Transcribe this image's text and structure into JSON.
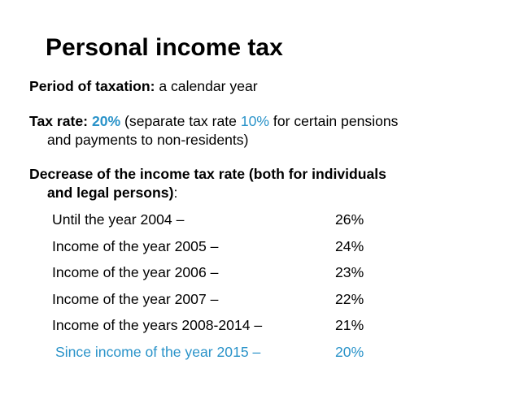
{
  "title": "Personal income tax",
  "period": {
    "label": "Period of taxation:",
    "value": " a calendar year"
  },
  "tax_rate": {
    "label": "Tax rate:",
    "rate": "20%",
    "text_before_separate": " (separate tax rate ",
    "separate_rate": "10%",
    "text_after_separate_line1": " for certain pensions",
    "text_line2": "and payments to non-residents)"
  },
  "decrease": {
    "line1": "Decrease of the income tax rate (both for individuals",
    "line2_bold": "and legal persons)",
    "line2_tail": ":"
  },
  "rates": [
    {
      "label": "Until the year 2004 –",
      "value": "26%"
    },
    {
      "label": "Income of the year 2005 –",
      "value": "24%"
    },
    {
      "label": "Income of the year 2006 –",
      "value": "23%"
    },
    {
      "label": "Income of the year 2007 –",
      "value": "22%"
    },
    {
      "label": "Income of the years 2008-2014 –",
      "value": "21%"
    },
    {
      "label": "Since income of the year 2015 –",
      "value": "20%"
    }
  ],
  "colors": {
    "accent": "#2a93c9",
    "text": "#000000",
    "background": "#ffffff"
  }
}
